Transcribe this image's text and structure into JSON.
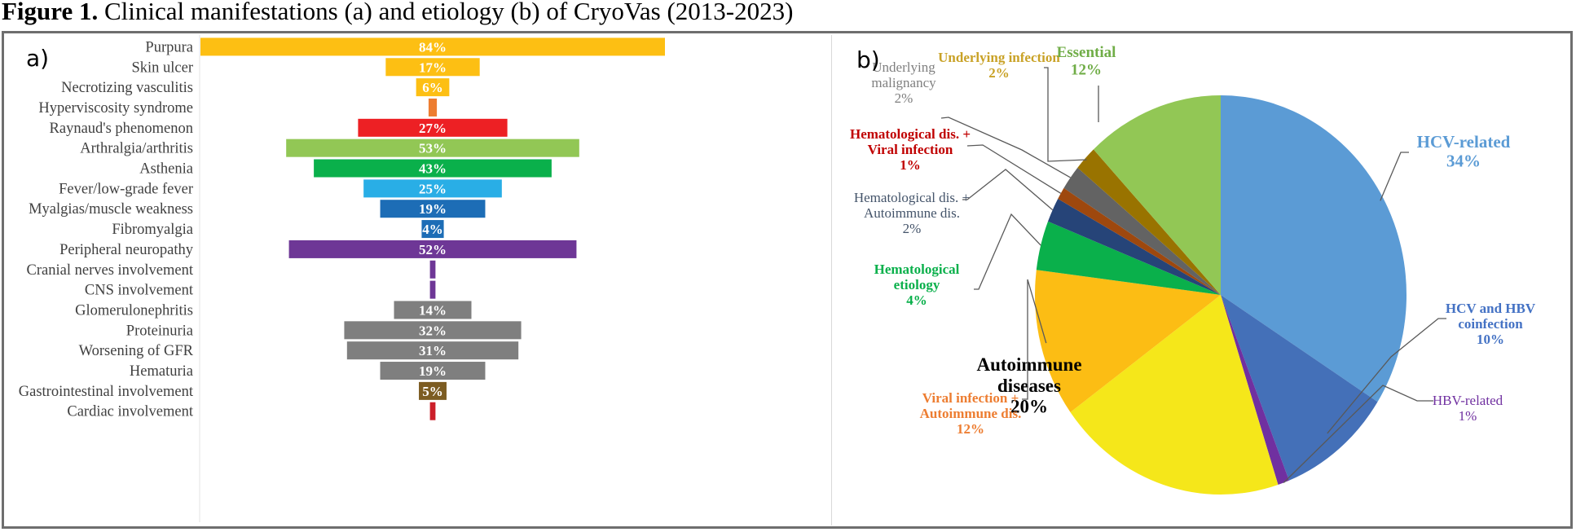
{
  "figure": {
    "title_bold": "Figure 1.",
    "title_rest": " Clinical manifestations (a) and etiology (b) of CryoVas (2013-2023)"
  },
  "chart_data": [
    {
      "type": "bar",
      "orientation": "horizontal-centered",
      "panel_label": "a)",
      "title": "Clinical manifestations",
      "xlabel": "",
      "ylabel": "",
      "xlim": [
        0,
        84
      ],
      "grid": false,
      "categories": [
        "Purpura",
        "Skin ulcer",
        "Necrotizing vasculitis",
        "Hyperviscosity syndrome",
        "Raynaud's phenomenon",
        "Arthralgia/arthritis",
        "Asthenia",
        "Fever/low-grade fever",
        "Myalgias/muscle weakness",
        "Fibromyalgia",
        "Peripheral neuropathy",
        "Cranial nerves involvement",
        "CNS involvement",
        "Glomerulonephritis",
        "Proteinuria",
        "Worsening of GFR",
        "Hematuria",
        "Gastrointestinal involvement",
        "Cardiac involvement"
      ],
      "values": [
        84,
        17,
        6,
        1.5,
        27,
        53,
        43,
        25,
        19,
        4,
        52,
        1,
        1,
        14,
        32,
        31,
        19,
        5,
        1
      ],
      "labels": [
        "84%",
        "17%",
        "6%",
        "",
        "27%",
        "53%",
        "43%",
        "25%",
        "19%",
        "4%",
        "52%",
        "",
        "",
        "14%",
        "32%",
        "31%",
        "19%",
        "5%",
        ""
      ],
      "colors": [
        "#fdbf13",
        "#fdbf13",
        "#fdbf13",
        "#ed7d31",
        "#ed2024",
        "#92c755",
        "#0ab04b",
        "#29aee6",
        "#1d6db6",
        "#1d6db6",
        "#6e3796",
        "#6e3796",
        "#6e3796",
        "#7f7f7f",
        "#7f7f7f",
        "#7f7f7f",
        "#7f7f7f",
        "#7c5c22",
        "#cc1f2a"
      ]
    },
    {
      "type": "pie",
      "panel_label": "b)",
      "title": "Etiology",
      "slices": [
        {
          "name": "HCV-related",
          "value": 34,
          "label": "34%",
          "color": "#5b9bd5",
          "text_color": "#5b9bd5"
        },
        {
          "name": "HCV and HBV coinfection",
          "value": 10,
          "label": "10%",
          "color": "#4470b8",
          "text_color": "#4472c4"
        },
        {
          "name": "HBV-related",
          "value": 1,
          "label": "1%",
          "color": "#7030a0",
          "text_color": "#7030a0"
        },
        {
          "name": "Autoimmune diseases",
          "value": 20,
          "label": "20%",
          "color": "#f5e71a",
          "text_color": "#000000"
        },
        {
          "name": "Viral infection + Autoimmune dis.",
          "value": 12,
          "label": "12%",
          "color": "#fcbd14",
          "text_color": "#ed7d31"
        },
        {
          "name": "Hematological etiology",
          "value": 4,
          "label": "4%",
          "color": "#0ab04b",
          "text_color": "#0ab04b"
        },
        {
          "name": "Hematological dis. + Autoimmune dis.",
          "value": 2,
          "label": "2%",
          "color": "#264478",
          "text_color": "#44546a"
        },
        {
          "name": "Hematological dis. + Viral infection",
          "value": 1,
          "label": "1%",
          "color": "#9e480e",
          "text_color": "#c00000"
        },
        {
          "name": "Underlying malignancy",
          "value": 2,
          "label": "2%",
          "color": "#636363",
          "text_color": "#7f7f7f"
        },
        {
          "name": "Underlying infection",
          "value": 2,
          "label": "2%",
          "color": "#997300",
          "text_color": "#c9a227"
        },
        {
          "name": "Essential",
          "value": 12,
          "label": "12%",
          "color": "#92c755",
          "text_color": "#70ad47"
        }
      ],
      "label_lines": [
        [
          "HCV-related",
          "34%"
        ],
        [
          "HCV and HBV",
          "coinfection",
          "10%"
        ],
        [
          "HBV-related",
          "1%"
        ],
        [
          "Autoimmune",
          "diseases",
          "20%"
        ],
        [
          "Viral infection +",
          "Autoimmune dis.",
          "12%"
        ],
        [
          "Hematological",
          "etiology",
          "4%"
        ],
        [
          "Hematological dis. +",
          "Autoimmune dis.",
          "2%"
        ],
        [
          "Hematological dis. +",
          "Viral infection",
          "1%"
        ],
        [
          "Underlying",
          "malignancy",
          "2%"
        ],
        [
          "Underlying infection",
          "2%"
        ],
        [
          "Essential",
          "12%"
        ]
      ]
    }
  ]
}
